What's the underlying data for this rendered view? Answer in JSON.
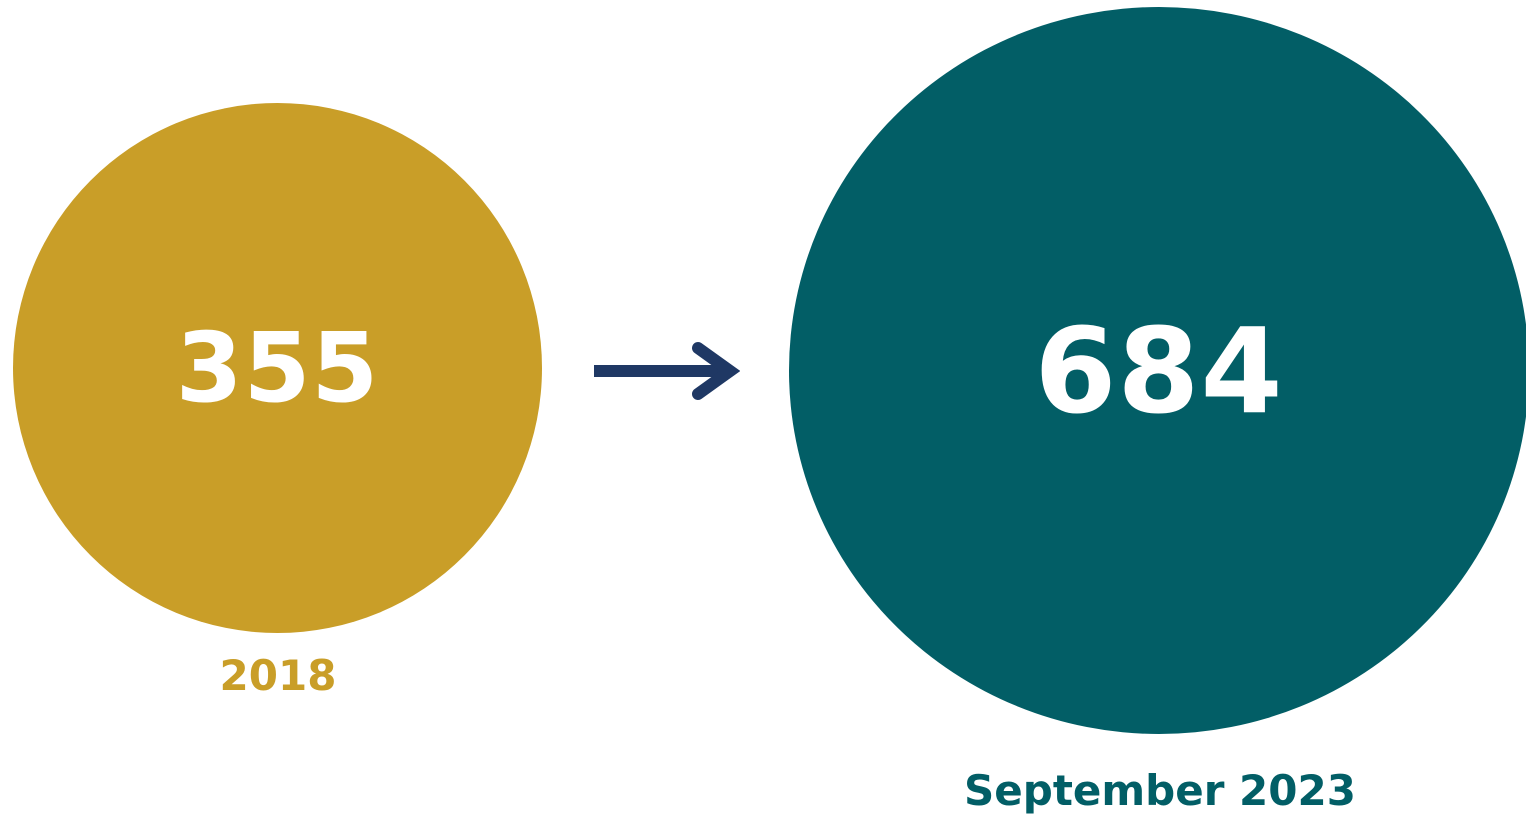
{
  "colors": {
    "gold": "#C99E28",
    "teal": "#025E66",
    "arrow": "#1F3864"
  },
  "before": {
    "value": "355",
    "label": "2018"
  },
  "after": {
    "value": "684",
    "label": "September 2023"
  },
  "arrow_icon": "arrow-right-icon"
}
